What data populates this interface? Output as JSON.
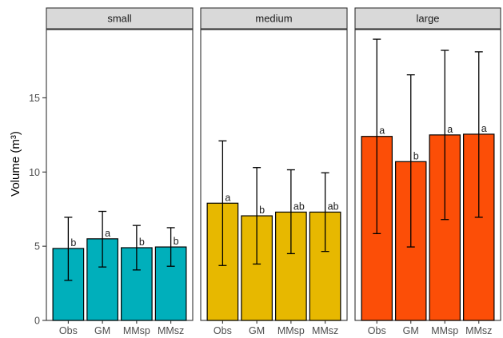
{
  "chart_data": {
    "type": "bar",
    "ylabel": "Volume (m³)",
    "ylim": [
      0,
      19.6
    ],
    "yticks": [
      0,
      5,
      10,
      15
    ],
    "categories": [
      "Obs",
      "GM",
      "MMsp",
      "MMsz"
    ],
    "facets": [
      {
        "name": "small",
        "color": "#00AFBB",
        "values": [
          4.85,
          5.5,
          4.9,
          4.95
        ],
        "err_low": [
          2.7,
          3.6,
          3.4,
          3.65
        ],
        "err_high": [
          6.95,
          7.35,
          6.4,
          6.25
        ],
        "letters": [
          "b",
          "a",
          "b",
          "b"
        ]
      },
      {
        "name": "medium",
        "color": "#E7B800",
        "values": [
          7.9,
          7.05,
          7.3,
          7.3
        ],
        "err_low": [
          3.7,
          3.8,
          4.5,
          4.65
        ],
        "err_high": [
          12.1,
          10.3,
          10.15,
          9.95
        ],
        "letters": [
          "a",
          "b",
          "ab",
          "ab"
        ]
      },
      {
        "name": "large",
        "color": "#FC4E07",
        "values": [
          12.4,
          10.7,
          12.5,
          12.55
        ],
        "err_low": [
          5.85,
          4.95,
          6.8,
          6.95
        ],
        "err_high": [
          18.95,
          16.55,
          18.2,
          18.1
        ],
        "letters": [
          "a",
          "b",
          "a",
          "a"
        ]
      }
    ],
    "grid": false
  }
}
